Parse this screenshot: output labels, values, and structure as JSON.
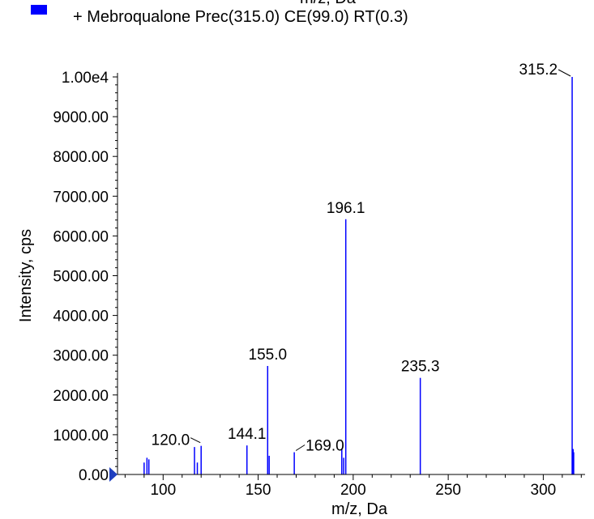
{
  "chart_data": {
    "type": "bar",
    "xlabel": "m/z, Da",
    "ylabel": "Intensity, cps",
    "top_cut_label": "m/z, Da",
    "legend": {
      "label": "+ Mebroqualone Prec(315.0) CE(99.0) RT(0.3)",
      "color": "#0000ff"
    },
    "xlim": [
      76,
      322
    ],
    "ylim": [
      0,
      10000
    ],
    "x_ticks": [
      100,
      150,
      200,
      250,
      300
    ],
    "y_ticks": [
      0,
      1000,
      2000,
      3000,
      4000,
      5000,
      6000,
      7000,
      8000,
      9000,
      10000
    ],
    "y_tick_labels": [
      "0.00",
      "1000.00",
      "2000.00",
      "3000.00",
      "4000.00",
      "5000.00",
      "6000.00",
      "7000.00",
      "8000.00",
      "9000.00",
      "1.00e4"
    ],
    "bar_color": "#0000ff",
    "peaks": [
      {
        "mz": 90.0,
        "intensity": 300
      },
      {
        "mz": 91.5,
        "intensity": 420
      },
      {
        "mz": 92.5,
        "intensity": 380
      },
      {
        "mz": 116.5,
        "intensity": 690
      },
      {
        "mz": 118.0,
        "intensity": 300
      },
      {
        "mz": 120.0,
        "intensity": 720
      },
      {
        "mz": 144.1,
        "intensity": 730
      },
      {
        "mz": 155.0,
        "intensity": 2730
      },
      {
        "mz": 155.8,
        "intensity": 470
      },
      {
        "mz": 169.0,
        "intensity": 560
      },
      {
        "mz": 194.0,
        "intensity": 650
      },
      {
        "mz": 195.0,
        "intensity": 420
      },
      {
        "mz": 196.1,
        "intensity": 6420
      },
      {
        "mz": 235.3,
        "intensity": 2430
      },
      {
        "mz": 315.2,
        "intensity": 10000
      },
      {
        "mz": 315.7,
        "intensity": 640
      },
      {
        "mz": 316.0,
        "intensity": 560
      }
    ],
    "annotations": [
      {
        "text": "120.0",
        "mz": 120.0,
        "intensity": 720,
        "leader": true
      },
      {
        "text": "144.1",
        "mz": 144.1,
        "intensity": 730,
        "leader": false
      },
      {
        "text": "155.0",
        "mz": 155.0,
        "intensity": 2730,
        "leader": false
      },
      {
        "text": "169.0",
        "mz": 169.0,
        "intensity": 560,
        "leader": true
      },
      {
        "text": "196.1",
        "mz": 196.1,
        "intensity": 6420,
        "leader": false
      },
      {
        "text": "235.3",
        "mz": 235.3,
        "intensity": 2430,
        "leader": false
      },
      {
        "text": "315.2",
        "mz": 315.2,
        "intensity": 10000,
        "leader": true
      }
    ]
  }
}
